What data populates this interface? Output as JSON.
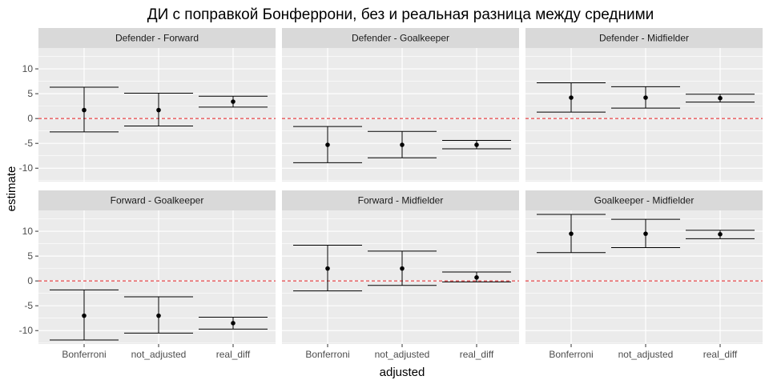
{
  "title": "ДИ с поправкой Бонферрони, без и реальная разница между средними",
  "chart_data": {
    "type": "errorbar",
    "title": "ДИ с поправкой Бонферрони, без и реальная разница между средними",
    "xlabel": "adjusted",
    "ylabel": "estimate",
    "categories": [
      "Bonferroni",
      "not_adjusted",
      "real_diff"
    ],
    "y_ticks": [
      -10,
      -5,
      0,
      5,
      10
    ],
    "ylim": [
      -12.7,
      14.2
    ],
    "reference_line": {
      "y": 0,
      "color": "#e41a1c",
      "style": "dashed"
    },
    "grid": true,
    "facets": [
      {
        "label": "Defender - Forward",
        "points": [
          {
            "x": "Bonferroni",
            "estimate": 1.7,
            "lower": -2.7,
            "upper": 6.3
          },
          {
            "x": "not_adjusted",
            "estimate": 1.7,
            "lower": -1.5,
            "upper": 5.1
          },
          {
            "x": "real_diff",
            "estimate": 3.4,
            "lower": 2.3,
            "upper": 4.5
          }
        ]
      },
      {
        "label": "Defender - Goalkeeper",
        "points": [
          {
            "x": "Bonferroni",
            "estimate": -5.3,
            "lower": -8.9,
            "upper": -1.6
          },
          {
            "x": "not_adjusted",
            "estimate": -5.3,
            "lower": -7.9,
            "upper": -2.6
          },
          {
            "x": "real_diff",
            "estimate": -5.3,
            "lower": -6.1,
            "upper": -4.4
          }
        ]
      },
      {
        "label": "Defender - Midfielder",
        "points": [
          {
            "x": "Bonferroni",
            "estimate": 4.2,
            "lower": 1.3,
            "upper": 7.2
          },
          {
            "x": "not_adjusted",
            "estimate": 4.2,
            "lower": 2.1,
            "upper": 6.4
          },
          {
            "x": "real_diff",
            "estimate": 4.1,
            "lower": 3.3,
            "upper": 4.9
          }
        ]
      },
      {
        "label": "Forward - Goalkeeper",
        "points": [
          {
            "x": "Bonferroni",
            "estimate": -7.0,
            "lower": -11.9,
            "upper": -1.8
          },
          {
            "x": "not_adjusted",
            "estimate": -7.0,
            "lower": -10.5,
            "upper": -3.2
          },
          {
            "x": "real_diff",
            "estimate": -8.5,
            "lower": -9.7,
            "upper": -7.3
          }
        ]
      },
      {
        "label": "Forward - Midfielder",
        "points": [
          {
            "x": "Bonferroni",
            "estimate": 2.5,
            "lower": -2.0,
            "upper": 7.2
          },
          {
            "x": "not_adjusted",
            "estimate": 2.5,
            "lower": -0.9,
            "upper": 6.0
          },
          {
            "x": "real_diff",
            "estimate": 0.7,
            "lower": -0.2,
            "upper": 1.8
          }
        ]
      },
      {
        "label": "Goalkeeper - Midfielder",
        "points": [
          {
            "x": "Bonferroni",
            "estimate": 9.5,
            "lower": 5.7,
            "upper": 13.4
          },
          {
            "x": "not_adjusted",
            "estimate": 9.5,
            "lower": 6.7,
            "upper": 12.4
          },
          {
            "x": "real_diff",
            "estimate": 9.4,
            "lower": 8.5,
            "upper": 10.2
          }
        ]
      }
    ]
  },
  "colors": {
    "panel_background": "#ebebeb",
    "strip_background": "#d9d9d9",
    "grid_major": "#ffffff",
    "reference_line": "#e41a1c",
    "marks": "#000000"
  }
}
